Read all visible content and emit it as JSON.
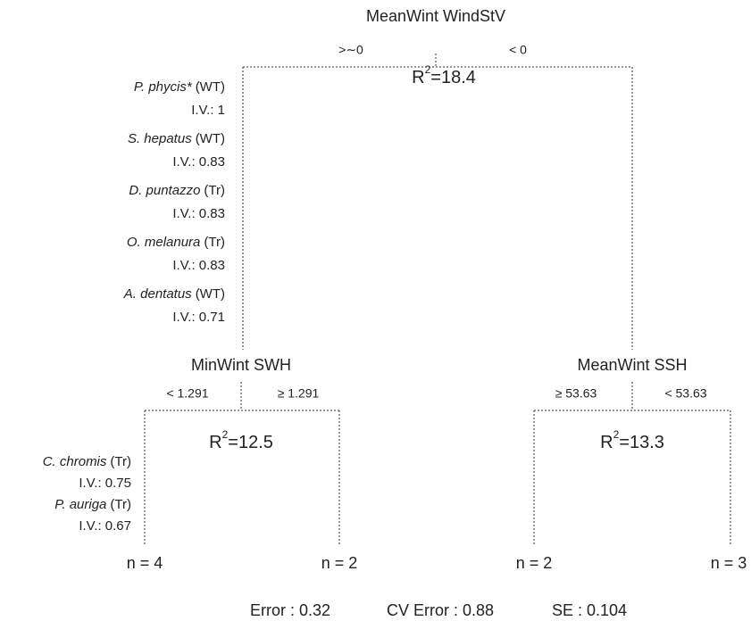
{
  "root": {
    "label": "MeanWint WindStV",
    "left_split": ">∼0",
    "right_split": "< 0",
    "r2": {
      "base": "R",
      "exponent": "2",
      "value": "=18.4"
    },
    "indicators": [
      {
        "species": "P. phycis*",
        "group": "(WT)",
        "iv": "I.V.: 1"
      },
      {
        "species": "S. hepatus",
        "group": "(WT)",
        "iv": "I.V.: 0.83"
      },
      {
        "species": "D. puntazzo",
        "group": "(Tr)",
        "iv": "I.V.: 0.83"
      },
      {
        "species": "O. melanura",
        "group": "(Tr)",
        "iv": "I.V.: 0.83"
      },
      {
        "species": "A. dentatus",
        "group": "(WT)",
        "iv": "I.V.: 0.71"
      }
    ]
  },
  "left": {
    "label": "MinWint SWH",
    "left_split": "< 1.291",
    "right_split": "≥ 1.291",
    "r2": {
      "base": "R",
      "exponent": "2",
      "value": "=12.5"
    },
    "indicators": [
      {
        "species": "C. chromis",
        "group": "(Tr)",
        "iv": "I.V.: 0.75"
      },
      {
        "species": "P. auriga",
        "group": "(Tr)",
        "iv": "I.V.: 0.67"
      }
    ]
  },
  "right": {
    "label": "MeanWint SSH",
    "left_split": "≥ 53.63",
    "right_split": "< 53.63",
    "r2": {
      "base": "R",
      "exponent": "2",
      "value": "=13.3"
    }
  },
  "leaves": [
    "n = 4",
    "n = 2",
    "n = 2",
    "n = 3"
  ],
  "footer": {
    "error": "Error : 0.32",
    "cv_error": "CV Error : 0.88",
    "se": "SE : 0.104"
  }
}
